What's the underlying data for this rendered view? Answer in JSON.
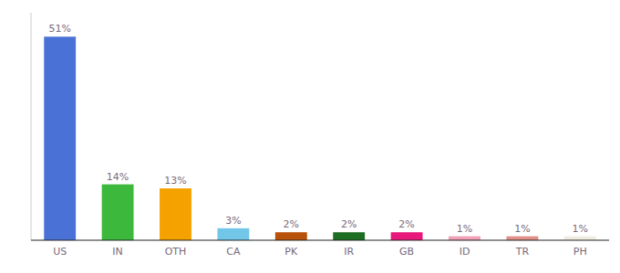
{
  "chart_data": {
    "type": "bar",
    "categories": [
      "US",
      "IN",
      "OTH",
      "CA",
      "PK",
      "IR",
      "GB",
      "ID",
      "TR",
      "PH"
    ],
    "values": [
      51,
      14,
      13,
      3,
      2,
      2,
      2,
      1,
      1,
      1
    ],
    "value_labels": [
      "51%",
      "14%",
      "13%",
      "3%",
      "2%",
      "2%",
      "2%",
      "1%",
      "1%",
      "1%"
    ],
    "colors": [
      "#4a72d6",
      "#3cb83c",
      "#f5a200",
      "#72c6e8",
      "#b8520a",
      "#1e6e22",
      "#e8197a",
      "#f0a0b8",
      "#e09088",
      "#f0ece0"
    ],
    "ylim": [
      0,
      57
    ],
    "data_labels": true,
    "tick_labels": "x",
    "grid": false
  }
}
